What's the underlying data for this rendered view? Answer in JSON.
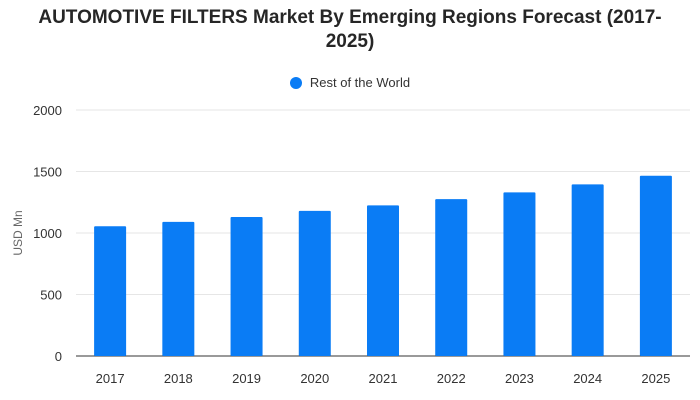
{
  "chart_data": {
    "type": "bar",
    "title": "AUTOMOTIVE FILTERS Market By Emerging Regions Forecast (2017-2025)",
    "title_lines": [
      "AUTOMOTIVE FILTERS Market By Emerging Regions Forecast (2017-",
      "2025)"
    ],
    "ylabel": "USD Mn",
    "xlabel": "",
    "ylim": [
      0,
      2000
    ],
    "yticks": [
      0,
      500,
      1000,
      1500,
      2000
    ],
    "ytick_labels": [
      "0",
      "500",
      "1000",
      "1500",
      "2000"
    ],
    "categories": [
      "2017",
      "2018",
      "2019",
      "2020",
      "2021",
      "2022",
      "2023",
      "2024",
      "2025"
    ],
    "series": [
      {
        "name": "Rest of the World",
        "color": "#0a7cf5",
        "values": [
          1055,
          1090,
          1130,
          1180,
          1225,
          1275,
          1330,
          1395,
          1465
        ]
      }
    ],
    "legend_position": "top-center",
    "grid": true
  }
}
